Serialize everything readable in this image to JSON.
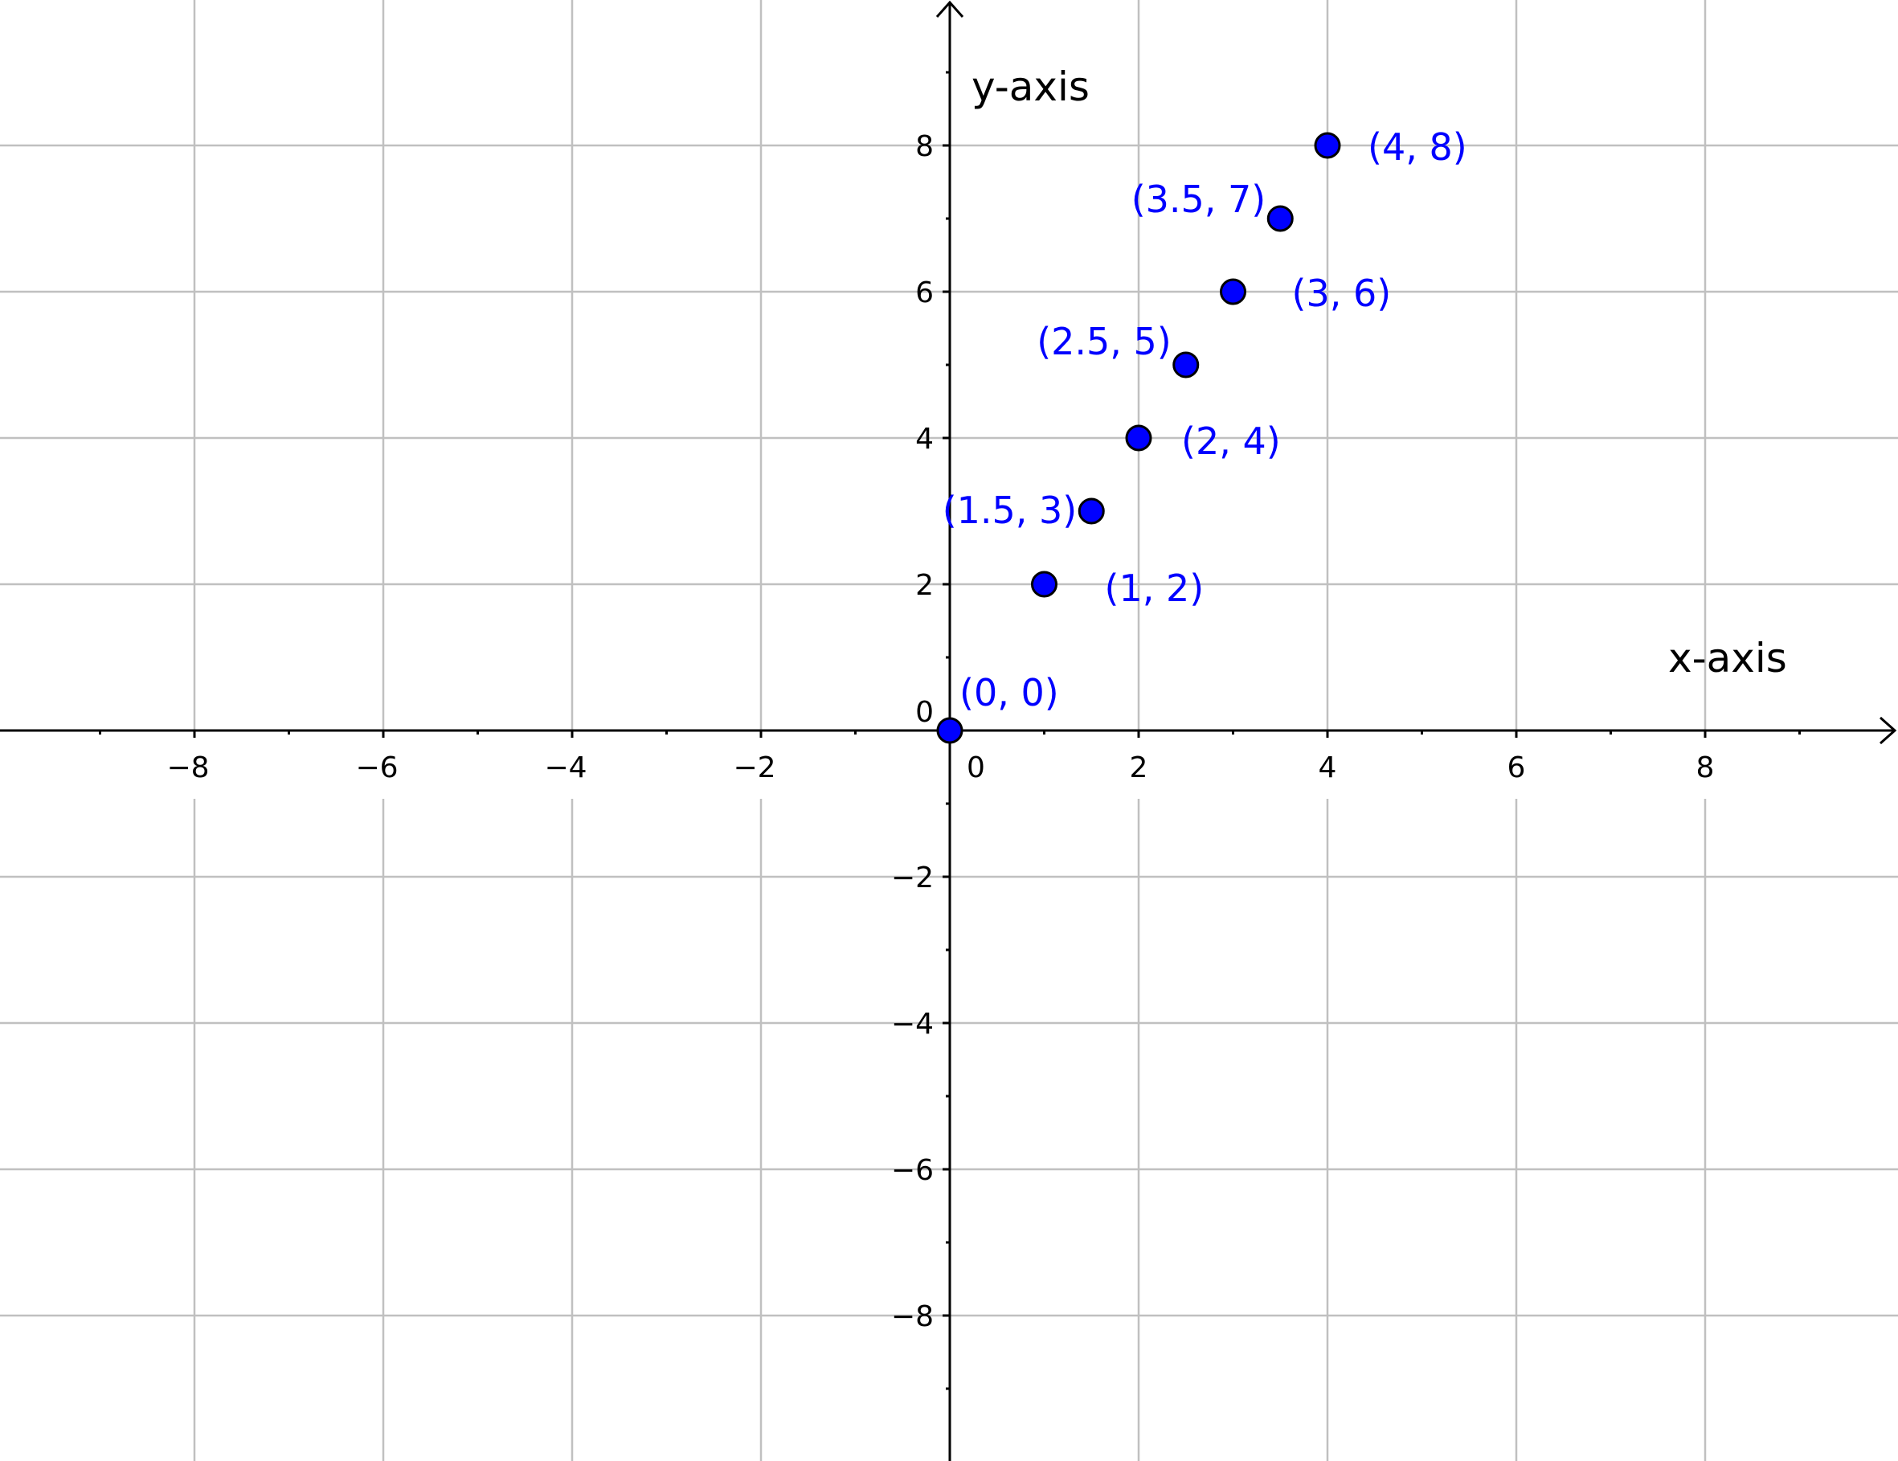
{
  "chart_data": {
    "type": "scatter",
    "xlabel": "x-axis",
    "ylabel": "y-axis",
    "xlim": [
      -10,
      10
    ],
    "ylim": [
      -10,
      10
    ],
    "grid": true,
    "x_ticks": [
      -8,
      -6,
      -4,
      -2,
      0,
      2,
      4,
      6,
      8
    ],
    "y_ticks": [
      -8,
      -6,
      -4,
      -2,
      0,
      2,
      4,
      6,
      8
    ],
    "tick_labels_x": [
      "−8",
      "−6",
      "−4",
      "−2",
      "0",
      "2",
      "4",
      "6",
      "8"
    ],
    "tick_labels_y": [
      "−8",
      "−6",
      "−4",
      "−2",
      "0",
      "2",
      "4",
      "6",
      "8"
    ],
    "point_color": "#0000ff",
    "points": [
      {
        "x": 0,
        "y": 0,
        "label": "(0, 0)"
      },
      {
        "x": 1,
        "y": 2,
        "label": "(1, 2)"
      },
      {
        "x": 1.5,
        "y": 3,
        "label": "(1.5, 3)"
      },
      {
        "x": 2,
        "y": 4,
        "label": "(2, 4)"
      },
      {
        "x": 2.5,
        "y": 5,
        "label": "(2.5, 5)"
      },
      {
        "x": 3,
        "y": 6,
        "label": "(3, 6)"
      },
      {
        "x": 3.5,
        "y": 7,
        "label": "(3.5, 7)"
      },
      {
        "x": 4,
        "y": 8,
        "label": "(4, 8)"
      }
    ]
  }
}
